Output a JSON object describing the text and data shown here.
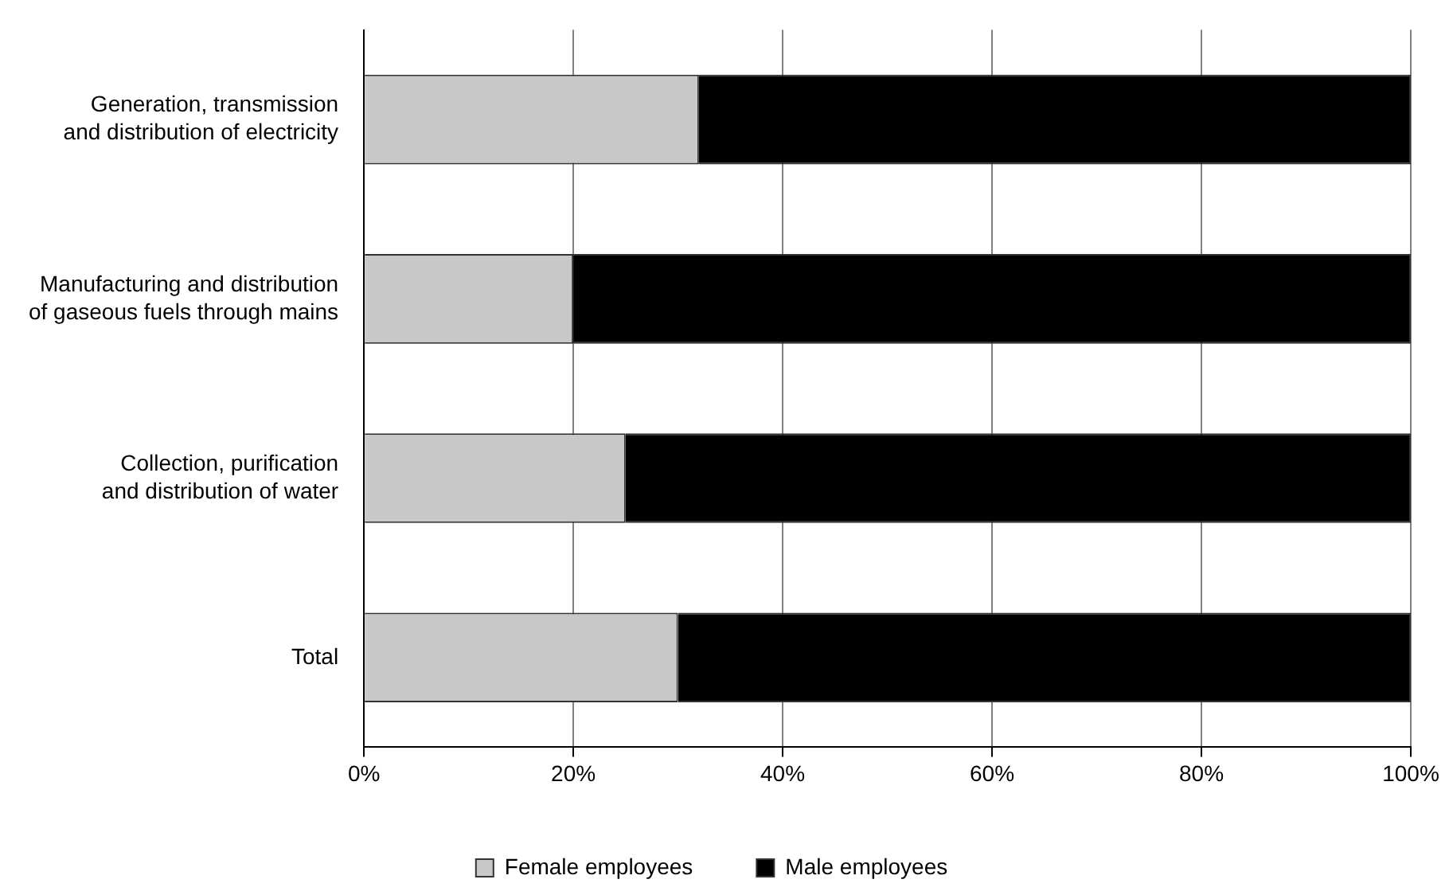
{
  "chart_data": {
    "type": "bar",
    "orientation": "horizontal",
    "stacked": true,
    "categories": [
      "Generation, transmission and distribution of electricity",
      "Manufacturing and distribution of gaseous fuels through mains",
      "Collection, purification and distribution of water",
      "Total"
    ],
    "series": [
      {
        "name": "Female employees",
        "color": "#c8c8c8",
        "values": [
          32,
          20,
          25,
          30
        ]
      },
      {
        "name": "Male employees",
        "color": "#000000",
        "values": [
          68,
          80,
          75,
          70
        ]
      }
    ],
    "xlim": [
      0,
      100
    ],
    "xticks": [
      {
        "value": 0,
        "label": "0%"
      },
      {
        "value": 20,
        "label": "20%"
      },
      {
        "value": 40,
        "label": "40%"
      },
      {
        "value": 60,
        "label": "60%"
      },
      {
        "value": 80,
        "label": "80%"
      },
      {
        "value": 100,
        "label": "100%"
      }
    ],
    "grid": "x",
    "legend": "bottom"
  }
}
